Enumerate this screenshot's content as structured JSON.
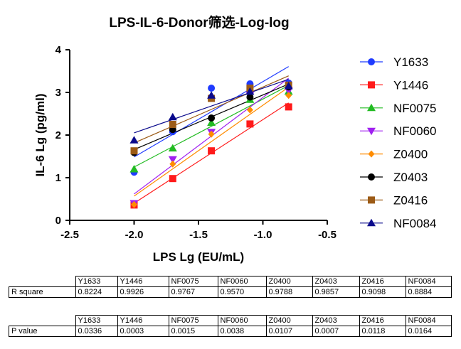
{
  "chart_data": {
    "type": "scatter",
    "title": "LPS-IL-6-Donor筛选-Log-log",
    "xlabel": "LPS Lg (EU/mL)",
    "ylabel": "IL-6 Lg (pg/ml)",
    "xlim": [
      -2.5,
      -0.5
    ],
    "ylim": [
      0,
      4
    ],
    "xticks": [
      "-2.5",
      "-2.0",
      "-1.5",
      "-1.0",
      "-0.5"
    ],
    "yticks": [
      "0",
      "1",
      "2",
      "3",
      "4"
    ],
    "grid": false,
    "legend": "right",
    "trendlines": "linear fit per series",
    "x": [
      -2.0,
      -1.7,
      -1.4,
      -1.1,
      -0.8
    ],
    "series": [
      {
        "name": "Y1633",
        "marker": "circle",
        "color": "#1f3bff",
        "values": [
          1.13,
          2.08,
          3.1,
          3.2,
          3.22
        ]
      },
      {
        "name": "Y1446",
        "marker": "square",
        "color": "#ff1a1a",
        "values": [
          0.36,
          0.98,
          1.63,
          2.26,
          2.66
        ]
      },
      {
        "name": "NF0075",
        "marker": "triangle-up",
        "color": "#22bb22",
        "values": [
          1.2,
          1.69,
          2.29,
          2.83,
          3.02
        ]
      },
      {
        "name": "NF0060",
        "marker": "triangle-down",
        "color": "#a020f0",
        "values": [
          0.4,
          1.43,
          2.07,
          2.94,
          3.04
        ]
      },
      {
        "name": "Z0400",
        "marker": "diamond",
        "color": "#ff8c00",
        "values": [
          0.37,
          1.32,
          2.02,
          2.59,
          2.93
        ]
      },
      {
        "name": "Z0403",
        "marker": "circle",
        "color": "#000000",
        "values": [
          1.59,
          2.13,
          2.4,
          2.89,
          3.13
        ]
      },
      {
        "name": "Z0416",
        "marker": "square",
        "color": "#9c5b16",
        "values": [
          1.63,
          2.25,
          2.86,
          3.1,
          3.17
        ]
      },
      {
        "name": "NF0084",
        "marker": "triangle-up",
        "color": "#0a0a8c",
        "values": [
          1.88,
          2.42,
          2.93,
          3.02,
          3.15
        ]
      }
    ]
  },
  "tables": {
    "headers": [
      "Y1633",
      "Y1446",
      "NF0075",
      "NF0060",
      "Z0400",
      "Z0403",
      "Z0416",
      "NF0084"
    ],
    "r_square": {
      "label": "R square",
      "values": [
        "0.8224",
        "0.9926",
        "0.9767",
        "0.9570",
        "0.9788",
        "0.9857",
        "0.9098",
        "0.8884"
      ]
    },
    "p_value": {
      "label": "P value",
      "values": [
        "0.0336",
        "0.0003",
        "0.0015",
        "0.0038",
        "0.0107",
        "0.0007",
        "0.0118",
        "0.0164"
      ]
    }
  }
}
